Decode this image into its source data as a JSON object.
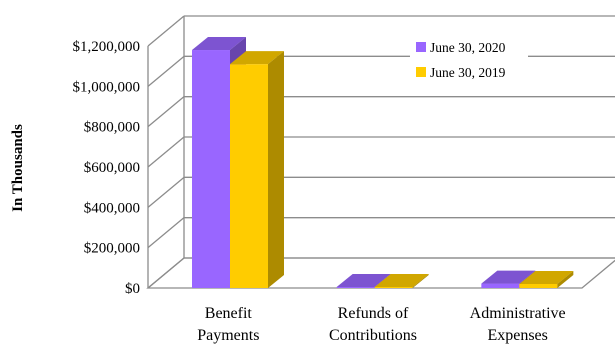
{
  "chart_data": {
    "type": "bar",
    "ylabel": "In Thousands",
    "categories": [
      [
        "Benefit",
        "Payments"
      ],
      [
        "Refunds of",
        "Contributions"
      ],
      [
        "Administrative",
        "Expenses"
      ]
    ],
    "series": [
      {
        "name": "June 30, 2020",
        "color": "#9966ff",
        "values": [
          1180000,
          5000,
          22000
        ]
      },
      {
        "name": "June 30, 2019",
        "color": "#ffcc00",
        "values": [
          1110000,
          5000,
          20000
        ]
      }
    ],
    "ylim": [
      0,
      1200000
    ],
    "yticks": [
      "$0",
      "$200,000",
      "$400,000",
      "$600,000",
      "$800,000",
      "$1,000,000",
      "$1,200,000"
    ],
    "grid": true,
    "legend": "top-right",
    "style": "3d"
  }
}
